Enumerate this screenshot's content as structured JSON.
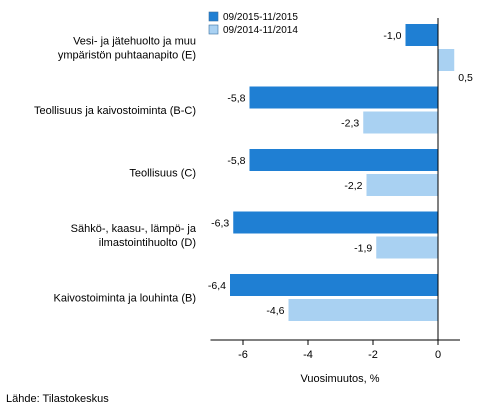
{
  "chart_data": {
    "type": "bar",
    "orientation": "horizontal",
    "categories": [
      [
        "Vesi- ja jätehuolto ja muu",
        "ympäristön puhtaanapito (E)"
      ],
      [
        "Teollisuus ja kaivostoiminta (B-C)"
      ],
      [
        "Teollisuus (C)"
      ],
      [
        "Sähkö-, kaasu-, lämpö- ja",
        "ilmastointihuolto (D)"
      ],
      [
        "Kaivostoiminta ja louhinta (B)"
      ]
    ],
    "series": [
      {
        "name": "09/2015-11/2015",
        "color": "#1f7fd3",
        "values": [
          -1.0,
          -5.8,
          -5.8,
          -6.3,
          -6.4
        ]
      },
      {
        "name": "09/2014-11/2014",
        "color": "#a9d1f2",
        "values": [
          0.5,
          -2.3,
          -2.2,
          -1.9,
          -4.6
        ]
      }
    ],
    "value_labels": [
      [
        "-1,0",
        "-5,8",
        "-5,8",
        "-6,3",
        "-6,4"
      ],
      [
        "0,5",
        "-2,3",
        "-2,2",
        "-1,9",
        "-4,6"
      ]
    ],
    "xlabel": "Vuosimuutos, %",
    "xlim": [
      -7,
      0.6
    ],
    "xticks": [
      -6,
      -4,
      -2,
      0
    ],
    "xtick_labels": [
      "-6",
      "-4",
      "-2",
      "0"
    ],
    "legend_position": "top-left",
    "grid": false
  },
  "source": "Lähde: Tilastokeskus"
}
